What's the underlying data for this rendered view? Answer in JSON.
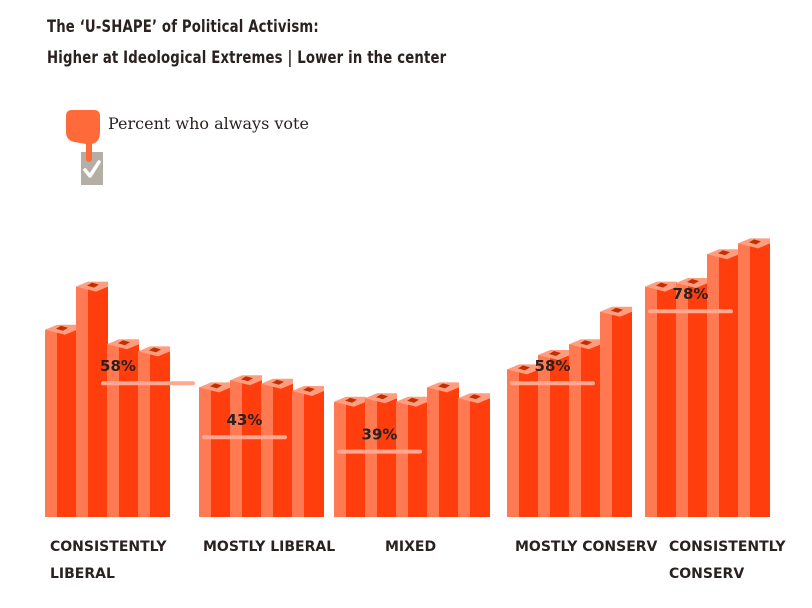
{
  "title": {
    "line1": "The ‘U-SHAPE’ of Political Activism:",
    "line2": "Higher at Ideological Extremes | Lower in the center"
  },
  "legend": {
    "label": "Percent who always vote",
    "icon": "hand-ballot-checkmark-icon"
  },
  "colors": {
    "bar_front": "#ff3d0d",
    "bar_side": "#ff7a52",
    "bar_top": "#ff9d80",
    "slot": "#c33000",
    "avg_line": "#ffa88f",
    "hand": "#ff6a3a",
    "ballot": "#b5aea4",
    "check": "#ffffff"
  },
  "chart_data": {
    "type": "bar",
    "title": "The ‘U-SHAPE’ of Political Activism: Higher at Ideological Extremes | Lower in the center",
    "legend_label": "Percent who always vote",
    "categories": [
      "CONSISTENTLY LIBERAL",
      "MOSTLY LIBERAL",
      "MIXED",
      "MOSTLY CONSERV",
      "CONSISTENTLY CONSERV"
    ],
    "groups": [
      {
        "label_lines": [
          "CONSISTENTLY",
          "LIBERAL"
        ],
        "value": 58,
        "value_label": "58%",
        "bars": [
          52,
          64,
          48,
          46
        ]
      },
      {
        "label_lines": [
          "MOSTLY LIBERAL"
        ],
        "value": 43,
        "value_label": "43%",
        "bars": [
          36,
          38,
          37,
          35
        ]
      },
      {
        "label_lines": [
          "MIXED"
        ],
        "value": 39,
        "value_label": "39%",
        "bars": [
          32,
          33,
          32,
          36,
          33
        ]
      },
      {
        "label_lines": [
          "MOSTLY CONSERV"
        ],
        "value": 58,
        "value_label": "58%",
        "bars": [
          41,
          45,
          48,
          57
        ]
      },
      {
        "label_lines": [
          "CONSISTENTLY",
          "CONSERV"
        ],
        "value": 78,
        "value_label": "78%",
        "bars": [
          64,
          65,
          73,
          76
        ]
      }
    ],
    "ylim": [
      0,
      100
    ],
    "grid": false,
    "legend_position": "top-left"
  }
}
